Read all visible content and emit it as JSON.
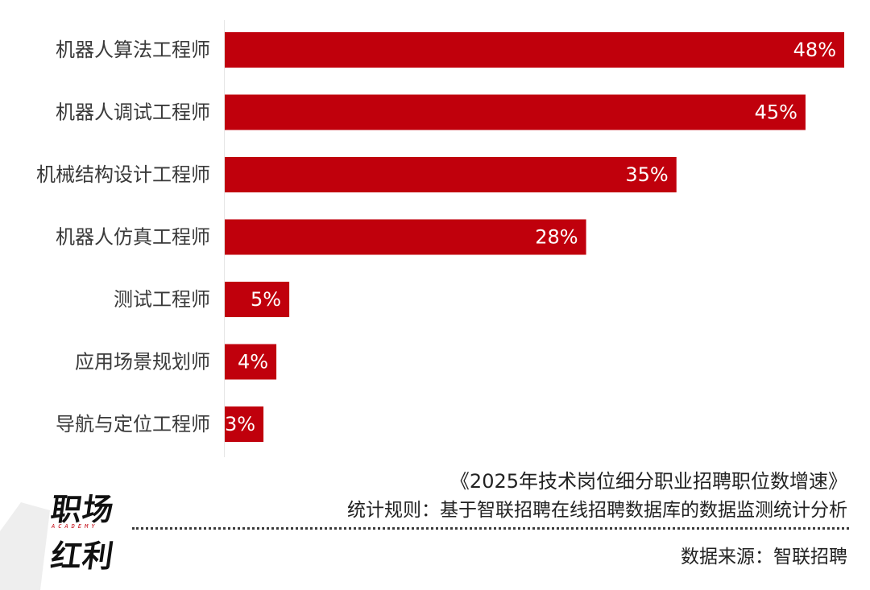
{
  "chart_data": {
    "type": "bar",
    "orientation": "horizontal",
    "categories": [
      "机器人算法工程师",
      "机器人调试工程师",
      "机械结构设计工程师",
      "机器人仿真工程师",
      "测试工程师",
      "应用场景规划师",
      "导航与定位工程师"
    ],
    "values": [
      48,
      45,
      35,
      28,
      5,
      4,
      3
    ],
    "value_labels": [
      "48%",
      "45%",
      "35%",
      "28%",
      "5%",
      "4%",
      "3%"
    ],
    "xlim": [
      0,
      48
    ],
    "bar_color": "#c0000c",
    "grid": false,
    "legend": "none"
  },
  "footer": {
    "title": "《2025年技术岗位细分职业招聘职位数增速》",
    "rule": "统计规则：基于智联招聘在线招聘数据库的数据监测统计分析",
    "source": "数据来源：智联招聘"
  },
  "logo": {
    "line1": "职场",
    "sub": "ACADEMY",
    "line2": "红利",
    "accent": "#c0000c",
    "shade": "#eeeeee"
  }
}
